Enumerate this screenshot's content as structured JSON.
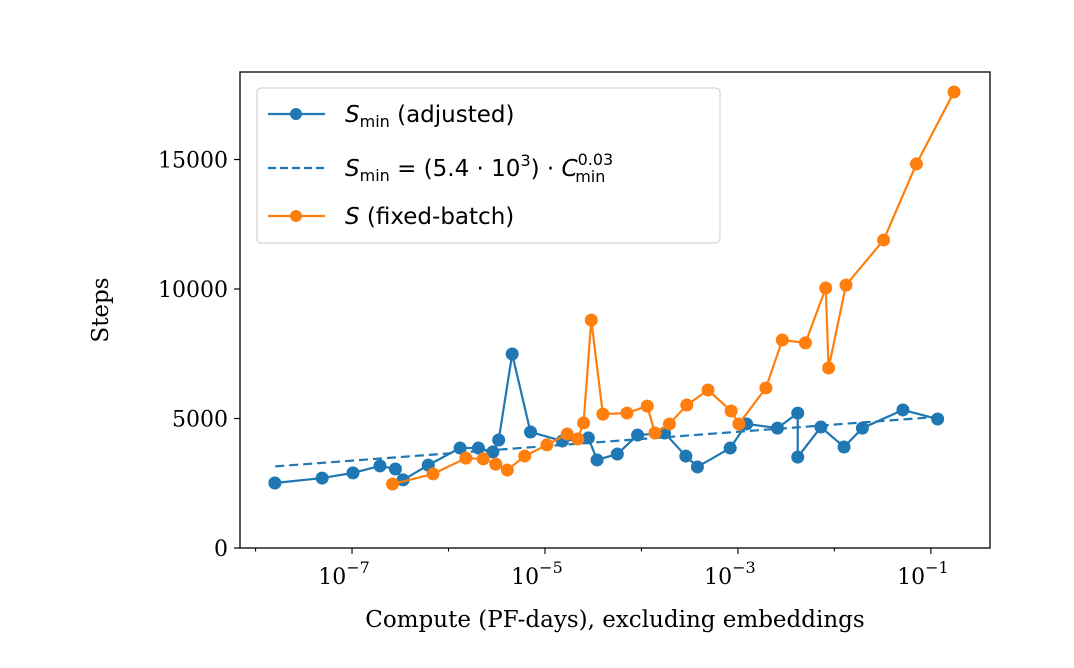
{
  "chart_data": {
    "type": "line",
    "xlabel": "Compute (PF-days), excluding embeddings",
    "ylabel": "Steps",
    "x_scale": "log",
    "xlim": [
      6.9e-09,
      0.41
    ],
    "ylim": [
      0,
      18380
    ],
    "x_ticks": [
      {
        "base": "10",
        "exp": "−7",
        "value": 1e-07
      },
      {
        "base": "10",
        "exp": "−5",
        "value": 1e-05
      },
      {
        "base": "10",
        "exp": "−3",
        "value": 0.001
      },
      {
        "base": "10",
        "exp": "−1",
        "value": 0.1
      }
    ],
    "y_ticks": [
      "0",
      "5000",
      "10000",
      "15000"
    ],
    "y_tick_values": [
      0,
      5000,
      10000,
      15000
    ],
    "grid": false,
    "legend_position": "top-left",
    "series": [
      {
        "name": "S_min (adjusted)",
        "legend": {
          "symbol": "S",
          "sub": "min",
          "rest": " (adjusted)"
        },
        "color": "#1f77b4",
        "style": "solid-markers",
        "log10_x": [
          -7.8,
          -7.31,
          -6.99,
          -6.71,
          -6.55,
          -6.47,
          -6.21,
          -5.88,
          -5.69,
          -5.54,
          -5.48,
          -5.34,
          -5.15,
          -4.82,
          -4.55,
          -4.46,
          -4.25,
          -4.04,
          -3.76,
          -3.54,
          -3.42,
          -3.08,
          -2.91,
          -2.59,
          -2.38,
          -2.38,
          -2.14,
          -1.9,
          -1.71,
          -1.29,
          -0.93
        ],
        "y": [
          2510,
          2700,
          2900,
          3170,
          3050,
          2630,
          3200,
          3860,
          3860,
          3710,
          4170,
          7490,
          4480,
          4130,
          4250,
          3400,
          3630,
          4360,
          4440,
          3550,
          3130,
          3860,
          4790,
          4630,
          5210,
          3510,
          4670,
          3900,
          4630,
          5330,
          4980
        ]
      },
      {
        "name": "S_min = (5.4·10^3)·C_min^0.03",
        "legend": {
          "lhs": "S",
          "lhs_sub": "min",
          "eq": " = (5.4 · 10",
          "exp": "3",
          "mid": ") · ",
          "c": "C",
          "c_sub": "min",
          "c_exp": "0.03"
        },
        "color": "#1f77b4",
        "style": "dashed",
        "coefficient": 5400,
        "exponent": 0.03,
        "x_range": [
          1.6e-08,
          0.12
        ]
      },
      {
        "name": "S (fixed-batch)",
        "legend": {
          "symbol": "S",
          "rest": " (fixed-batch)"
        },
        "color": "#ff7f0e",
        "style": "solid-markers",
        "log10_x": [
          -6.58,
          -6.16,
          -5.82,
          -5.64,
          -5.51,
          -5.39,
          -5.21,
          -4.98,
          -4.77,
          -4.66,
          -4.6,
          -4.52,
          -4.4,
          -4.15,
          -3.94,
          -3.86,
          -3.71,
          -3.53,
          -3.31,
          -3.07,
          -2.99,
          -2.71,
          -2.54,
          -2.3,
          -2.09,
          -2.06,
          -1.88,
          -1.49,
          -1.15,
          -0.76
        ],
        "y": [
          2470,
          2860,
          3470,
          3440,
          3240,
          3010,
          3550,
          3980,
          4400,
          4210,
          4830,
          8800,
          5170,
          5210,
          5480,
          4440,
          4790,
          5520,
          6100,
          5290,
          4790,
          6180,
          8030,
          7920,
          10040,
          6950,
          10150,
          11890,
          14830,
          17610
        ]
      }
    ]
  }
}
